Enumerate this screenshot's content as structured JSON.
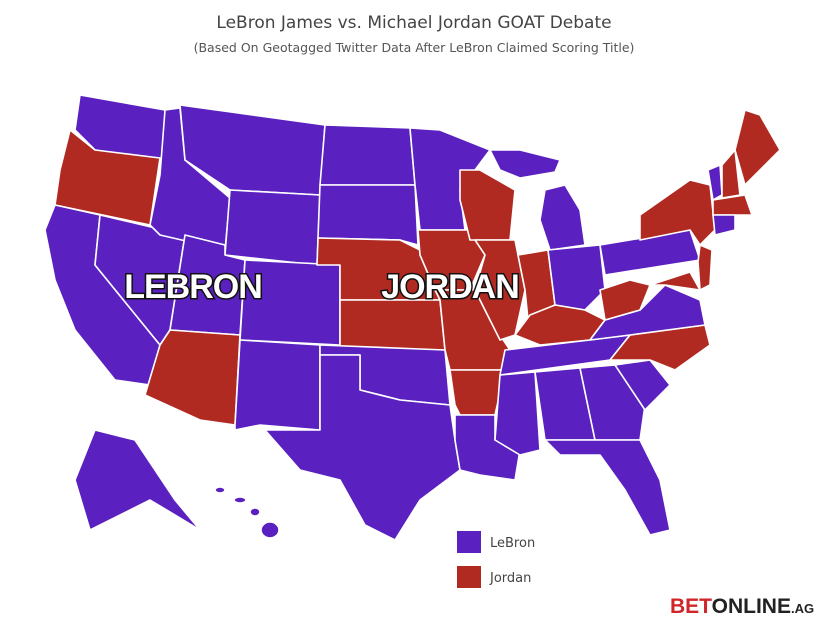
{
  "title": "LeBron James vs. Michael Jordan GOAT Debate",
  "subtitle": "(Based On Geotagged Twitter Data After LeBron Claimed Scoring Title)",
  "map_labels": [
    "LEBRON",
    "JORDAN"
  ],
  "legend": [
    {
      "label": "LeBron",
      "color": "#5a20c0"
    },
    {
      "label": "Jordan",
      "color": "#b02a22"
    }
  ],
  "logo": {
    "bet": "BET",
    "online": "ONLINE",
    "suffix": ".AG"
  }
}
